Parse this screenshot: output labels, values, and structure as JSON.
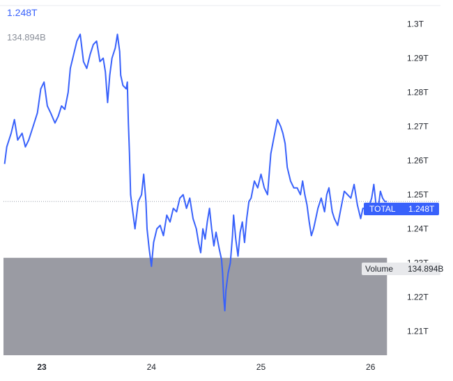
{
  "header": {
    "total_value": "1.248T",
    "volume_value": "134.894B"
  },
  "markers": {
    "total_label": "TOTAL",
    "total_value": "1.248T",
    "volume_label": "Volume",
    "volume_value": "134.894B"
  },
  "colors": {
    "line": "#3861fb",
    "volume_fill": "#9a9ba3",
    "grid": "#e9ebef",
    "dotted": "#9aa0ac",
    "axis_text": "#1e2229",
    "label_bg": "#3861fb",
    "volume_label_bg": "#e8e9ec"
  },
  "chart_data": {
    "type": "line",
    "title": "",
    "xlabel": "",
    "ylabel": "",
    "ylim": [
      1.205,
      1.305
    ],
    "xlim": [
      22.65,
      26.18
    ],
    "y_ticks": [
      1.3,
      1.29,
      1.28,
      1.27,
      1.26,
      1.25,
      1.24,
      1.23,
      1.22,
      1.21
    ],
    "y_tick_labels": [
      "1.3T",
      "1.29T",
      "1.28T",
      "1.27T",
      "1.26T",
      "1.25T",
      "1.24T",
      "1.23T",
      "1.22T",
      "1.21T"
    ],
    "x_ticks": [
      23,
      24,
      25,
      26
    ],
    "x_tick_labels": [
      "23",
      "24",
      "25",
      "26"
    ],
    "current_value": 1.248,
    "volume_level": 1.2315,
    "volume_end_x": 26.15,
    "grid": false,
    "series": [
      {
        "values": [
          [
            22.66,
            1.259
          ],
          [
            22.68,
            1.264
          ],
          [
            22.72,
            1.268
          ],
          [
            22.75,
            1.272
          ],
          [
            22.78,
            1.266
          ],
          [
            22.82,
            1.268
          ],
          [
            22.85,
            1.264
          ],
          [
            22.88,
            1.266
          ],
          [
            22.92,
            1.27
          ],
          [
            22.96,
            1.274
          ],
          [
            22.99,
            1.281
          ],
          [
            23.02,
            1.283
          ],
          [
            23.05,
            1.276
          ],
          [
            23.08,
            1.274
          ],
          [
            23.12,
            1.271
          ],
          [
            23.15,
            1.273
          ],
          [
            23.18,
            1.276
          ],
          [
            23.21,
            1.275
          ],
          [
            23.24,
            1.28
          ],
          [
            23.26,
            1.287
          ],
          [
            23.29,
            1.291
          ],
          [
            23.32,
            1.295
          ],
          [
            23.35,
            1.297
          ],
          [
            23.38,
            1.289
          ],
          [
            23.41,
            1.287
          ],
          [
            23.44,
            1.291
          ],
          [
            23.47,
            1.294
          ],
          [
            23.5,
            1.295
          ],
          [
            23.53,
            1.289
          ],
          [
            23.56,
            1.29
          ],
          [
            23.58,
            1.286
          ],
          [
            23.6,
            1.277
          ],
          [
            23.62,
            1.285
          ],
          [
            23.64,
            1.29
          ],
          [
            23.67,
            1.293
          ],
          [
            23.69,
            1.297
          ],
          [
            23.71,
            1.292
          ],
          [
            23.72,
            1.285
          ],
          [
            23.74,
            1.282
          ],
          [
            23.77,
            1.281
          ],
          [
            23.78,
            1.283
          ],
          [
            23.79,
            1.271
          ],
          [
            23.8,
            1.262
          ],
          [
            23.81,
            1.25
          ],
          [
            23.83,
            1.245
          ],
          [
            23.85,
            1.24
          ],
          [
            23.88,
            1.248
          ],
          [
            23.91,
            1.25
          ],
          [
            23.93,
            1.256
          ],
          [
            23.95,
            1.248
          ],
          [
            23.96,
            1.24
          ],
          [
            23.98,
            1.234
          ],
          [
            24.0,
            1.229
          ],
          [
            24.02,
            1.236
          ],
          [
            24.05,
            1.24
          ],
          [
            24.08,
            1.241
          ],
          [
            24.11,
            1.238
          ],
          [
            24.14,
            1.244
          ],
          [
            24.17,
            1.242
          ],
          [
            24.2,
            1.246
          ],
          [
            24.23,
            1.245
          ],
          [
            24.26,
            1.249
          ],
          [
            24.29,
            1.25
          ],
          [
            24.32,
            1.246
          ],
          [
            24.35,
            1.249
          ],
          [
            24.38,
            1.243
          ],
          [
            24.41,
            1.24
          ],
          [
            24.43,
            1.236
          ],
          [
            24.45,
            1.233
          ],
          [
            24.47,
            1.24
          ],
          [
            24.49,
            1.237
          ],
          [
            24.51,
            1.242
          ],
          [
            24.53,
            1.246
          ],
          [
            24.55,
            1.24
          ],
          [
            24.57,
            1.235
          ],
          [
            24.59,
            1.239
          ],
          [
            24.62,
            1.234
          ],
          [
            24.64,
            1.231
          ],
          [
            24.65,
            1.227
          ],
          [
            24.66,
            1.22
          ],
          [
            24.67,
            1.216
          ],
          [
            24.68,
            1.222
          ],
          [
            24.7,
            1.227
          ],
          [
            24.72,
            1.23
          ],
          [
            24.74,
            1.238
          ],
          [
            24.75,
            1.244
          ],
          [
            24.77,
            1.237
          ],
          [
            24.79,
            1.232
          ],
          [
            24.81,
            1.239
          ],
          [
            24.83,
            1.242
          ],
          [
            24.85,
            1.236
          ],
          [
            24.87,
            1.243
          ],
          [
            24.89,
            1.248
          ],
          [
            24.91,
            1.249
          ],
          [
            24.94,
            1.254
          ],
          [
            24.97,
            1.252
          ],
          [
            25.0,
            1.256
          ],
          [
            25.03,
            1.252
          ],
          [
            25.06,
            1.25
          ],
          [
            25.09,
            1.262
          ],
          [
            25.12,
            1.267
          ],
          [
            25.15,
            1.272
          ],
          [
            25.18,
            1.27
          ],
          [
            25.2,
            1.268
          ],
          [
            25.22,
            1.265
          ],
          [
            25.24,
            1.258
          ],
          [
            25.27,
            1.254
          ],
          [
            25.3,
            1.252
          ],
          [
            25.33,
            1.252
          ],
          [
            25.36,
            1.25
          ],
          [
            25.38,
            1.254
          ],
          [
            25.4,
            1.25
          ],
          [
            25.42,
            1.247
          ],
          [
            25.44,
            1.242
          ],
          [
            25.46,
            1.238
          ],
          [
            25.48,
            1.24
          ],
          [
            25.5,
            1.243
          ],
          [
            25.52,
            1.246
          ],
          [
            25.55,
            1.249
          ],
          [
            25.58,
            1.245
          ],
          [
            25.6,
            1.25
          ],
          [
            25.62,
            1.252
          ],
          [
            25.65,
            1.245
          ],
          [
            25.67,
            1.243
          ],
          [
            25.7,
            1.241
          ],
          [
            25.73,
            1.246
          ],
          [
            25.76,
            1.251
          ],
          [
            25.79,
            1.25
          ],
          [
            25.82,
            1.249
          ],
          [
            25.85,
            1.253
          ],
          [
            25.88,
            1.247
          ],
          [
            25.91,
            1.243
          ],
          [
            25.93,
            1.246
          ],
          [
            25.96,
            1.246
          ],
          [
            25.99,
            1.247
          ],
          [
            26.01,
            1.249
          ],
          [
            26.03,
            1.253
          ],
          [
            26.05,
            1.247
          ],
          [
            26.07,
            1.246
          ],
          [
            26.09,
            1.251
          ],
          [
            26.11,
            1.249
          ],
          [
            26.13,
            1.248
          ],
          [
            26.15,
            1.248
          ]
        ]
      }
    ]
  }
}
